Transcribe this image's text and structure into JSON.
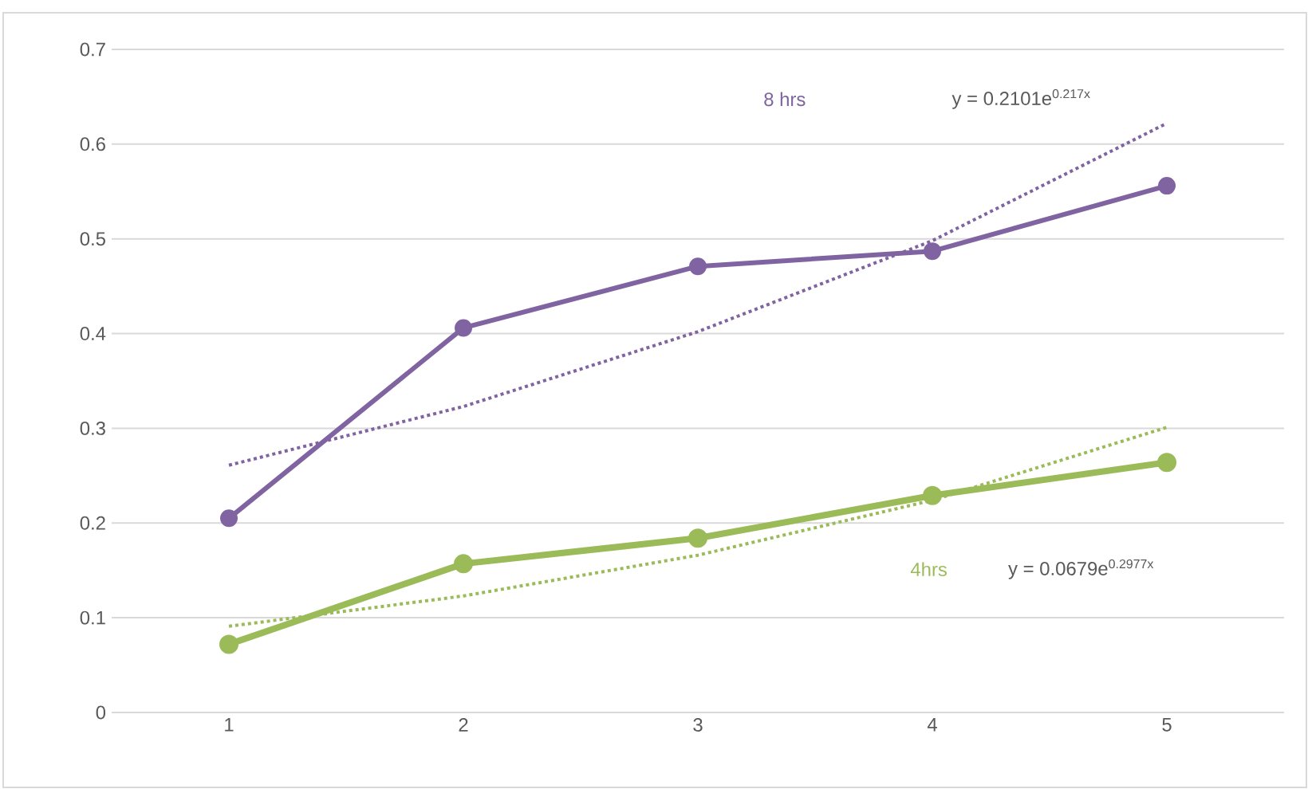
{
  "chart_data": {
    "type": "line",
    "xlim": [
      0.5,
      5.5
    ],
    "xticks": [
      1,
      2,
      3,
      4,
      5
    ],
    "ylim": [
      0,
      0.7
    ],
    "yticks": [
      0,
      0.1,
      0.2,
      0.3,
      0.4,
      0.5,
      0.6,
      0.7
    ],
    "grid": "y",
    "marker": "circle",
    "series": [
      {
        "name": "8 hrs",
        "color": "#8064a2",
        "x": [
          1,
          2,
          3,
          4,
          5
        ],
        "values": [
          0.205,
          0.406,
          0.471,
          0.487,
          0.556
        ]
      },
      {
        "name": "4hrs",
        "color": "#9bbb59",
        "x": [
          1,
          2,
          3,
          4,
          5
        ],
        "values": [
          0.072,
          0.157,
          0.184,
          0.229,
          0.264
        ]
      },
      {
        "type": "line",
        "color": "#8064a2",
        "marker": "none",
        "line_style": "dotted",
        "x": [
          1,
          2,
          3,
          4,
          5
        ],
        "values": [
          0.261,
          0.323,
          0.402,
          0.498,
          0.622
        ]
      },
      {
        "type": "line",
        "color": "#9bbb59",
        "marker": "none",
        "line_style": "dotted",
        "x": [
          1,
          2,
          3,
          4,
          5
        ],
        "values": [
          0.091,
          0.123,
          0.166,
          0.224,
          0.301
        ]
      }
    ],
    "annotations": [
      "y = 0.2101e$^{0.217x}$",
      "y = 0.0679e$^{0.2977x}$"
    ]
  }
}
